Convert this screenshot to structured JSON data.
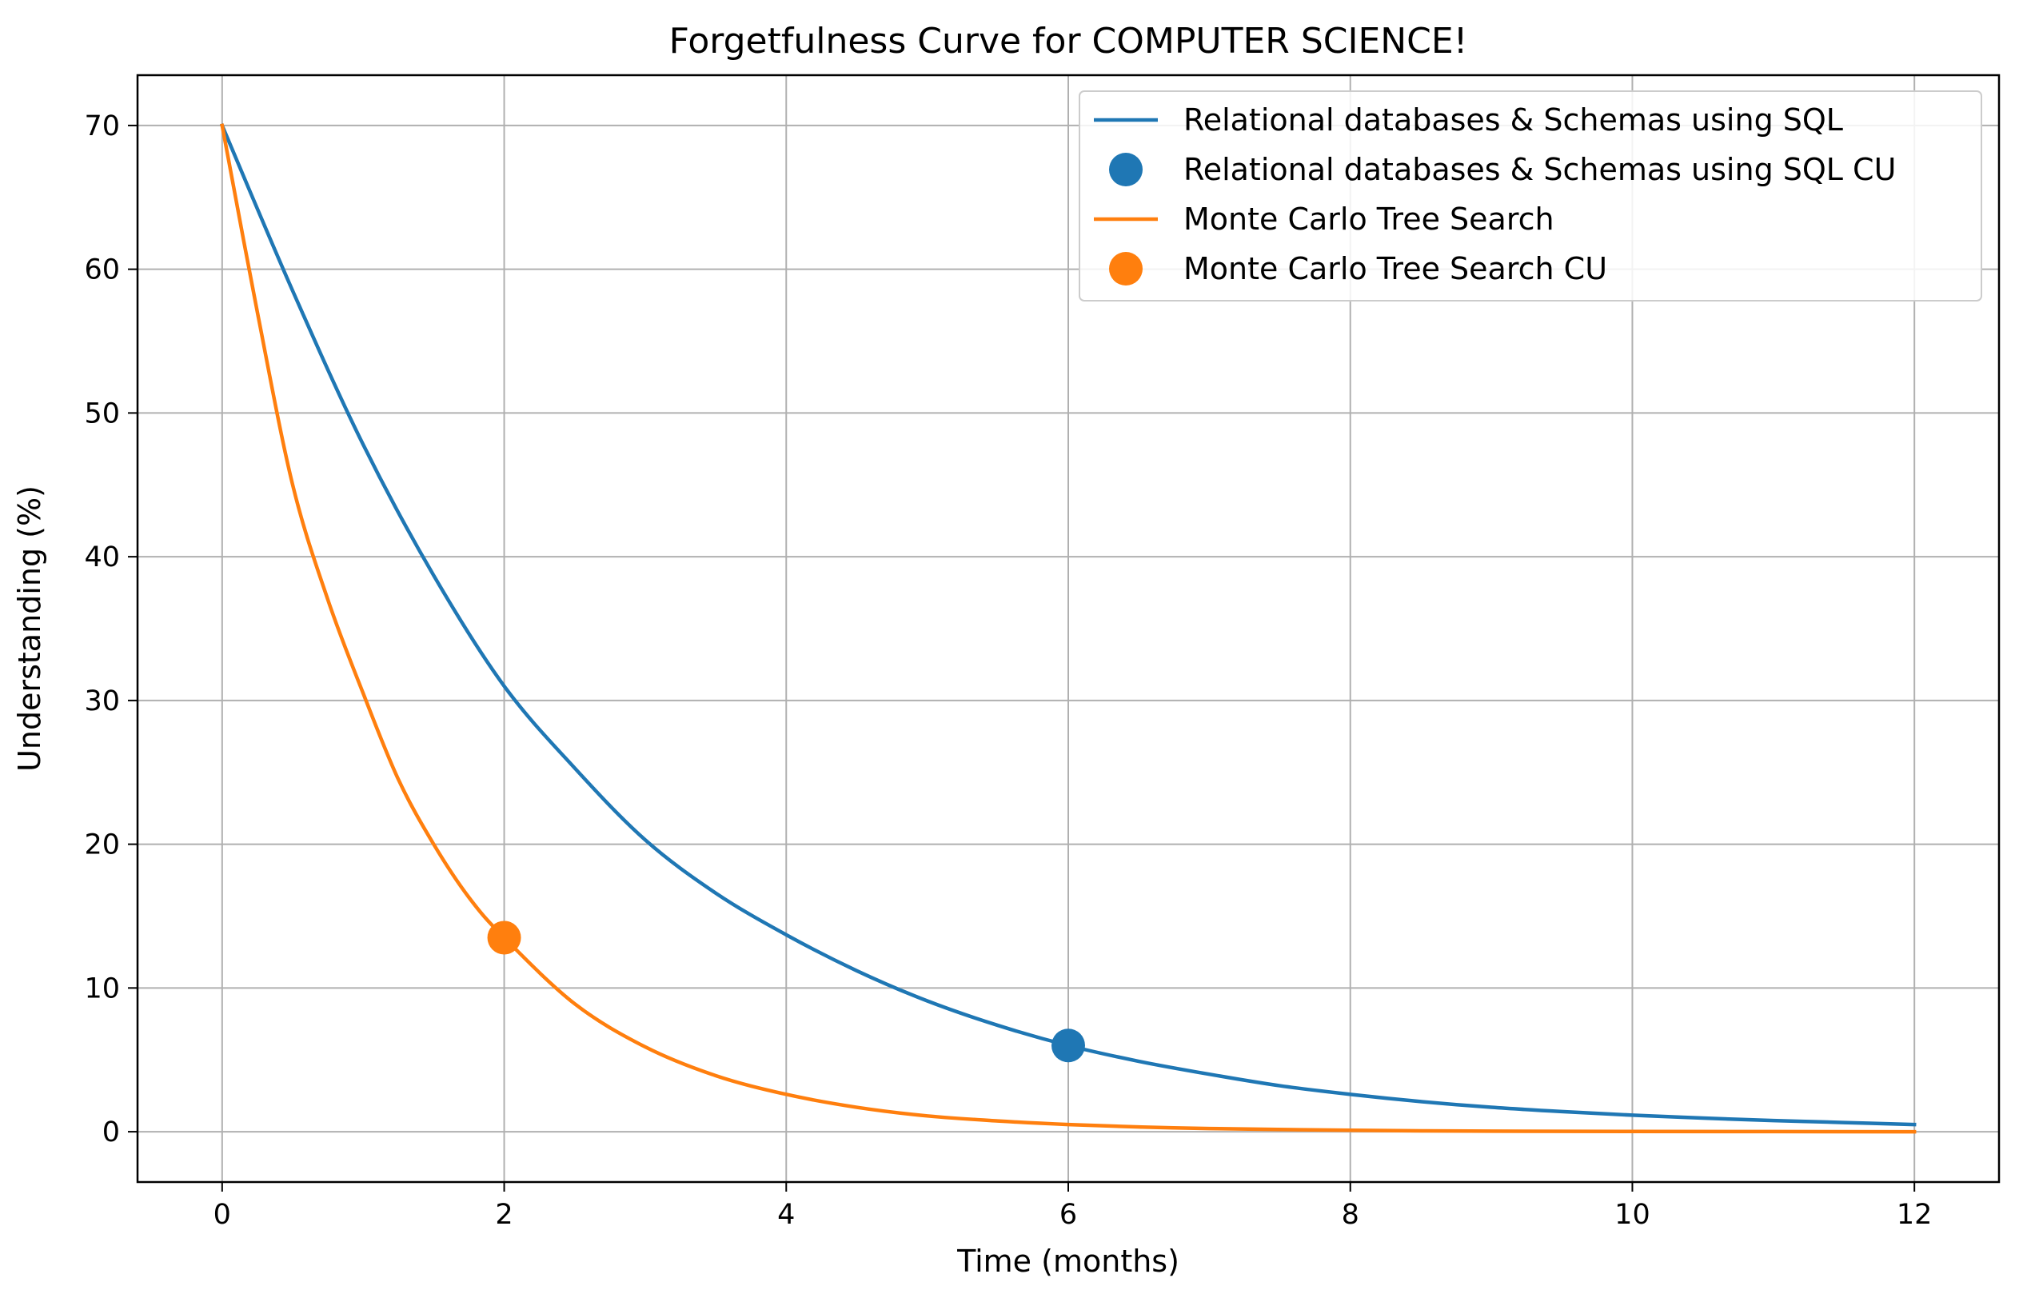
{
  "chart_data": {
    "type": "line",
    "title": "Forgetfulness Curve for COMPUTER SCIENCE!",
    "xlabel": "Time (months)",
    "ylabel": "Understanding (%)",
    "xlim": [
      -0.6,
      12.6
    ],
    "ylim": [
      -3.5,
      73.5
    ],
    "xticks": [
      0,
      2,
      4,
      6,
      8,
      10,
      12
    ],
    "yticks": [
      0,
      10,
      20,
      30,
      40,
      50,
      60,
      70
    ],
    "grid": true,
    "legend_position": "top-right",
    "series": [
      {
        "name": "Relational databases & Schemas using SQL",
        "kind": "line",
        "color": "#1f77b4",
        "x": [
          0,
          0.5,
          1,
          1.5,
          2,
          2.5,
          3,
          3.5,
          4,
          4.5,
          5,
          5.5,
          6,
          6.5,
          7,
          7.5,
          8,
          8.5,
          9,
          9.5,
          10,
          10.5,
          11,
          11.5,
          12
        ],
        "y": [
          70,
          58.5,
          47.8,
          38.7,
          31.0,
          25.3,
          20.3,
          16.6,
          13.7,
          11.2,
          9.1,
          7.4,
          6.0,
          4.9,
          4.0,
          3.2,
          2.6,
          2.1,
          1.7,
          1.4,
          1.15,
          0.95,
          0.78,
          0.64,
          0.5
        ]
      },
      {
        "name": "Relational databases & Schemas using SQL CU",
        "kind": "scatter",
        "color": "#1f77b4",
        "x": [
          6
        ],
        "y": [
          6.0
        ]
      },
      {
        "name": "Monte Carlo Tree Search",
        "kind": "line",
        "color": "#ff7f0e",
        "x": [
          0,
          0.25,
          0.5,
          0.75,
          1,
          1.25,
          1.5,
          1.75,
          2,
          2.5,
          3,
          3.5,
          4,
          4.5,
          5,
          5.5,
          6,
          6.5,
          7,
          8,
          9,
          10,
          11,
          12
        ],
        "y": [
          70,
          57,
          45,
          37,
          30.5,
          24.5,
          20,
          16.3,
          13.5,
          8.9,
          5.9,
          3.9,
          2.6,
          1.7,
          1.1,
          0.75,
          0.5,
          0.33,
          0.22,
          0.1,
          0.04,
          0.02,
          0.01,
          0.0
        ]
      },
      {
        "name": "Monte Carlo Tree Search CU",
        "kind": "scatter",
        "color": "#ff7f0e",
        "x": [
          2
        ],
        "y": [
          13.5
        ]
      }
    ]
  }
}
